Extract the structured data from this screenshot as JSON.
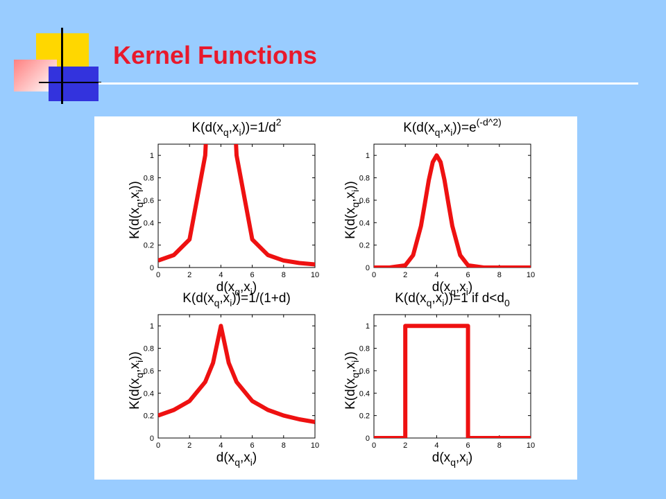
{
  "slide": {
    "title": "Kernel Functions",
    "accent_color": "#e8192c",
    "background_color": "#99ccff"
  },
  "chart_data": [
    {
      "type": "line",
      "title": "K(d(x_q,x_i))=1/d^2",
      "xlabel": "d(x_q,x_i)",
      "ylabel": "K(d(x_q,x_i))",
      "xlim": [
        0,
        10
      ],
      "ylim": [
        0,
        1.1
      ],
      "xticks": [
        0,
        2,
        4,
        6,
        8,
        10
      ],
      "yticks": [
        0,
        0.2,
        0.4,
        0.6,
        0.8,
        1
      ],
      "series_color": "#ee1111",
      "x": [
        0,
        1,
        2,
        3,
        3.2,
        4.8,
        5,
        6,
        7,
        8,
        9,
        10
      ],
      "y": [
        0.0625,
        0.111,
        0.25,
        1,
        1.56,
        1.56,
        1,
        0.25,
        0.111,
        0.0625,
        0.04,
        0.0278
      ]
    },
    {
      "type": "line",
      "title": "K(d(x_q,x_i))=e^(-d^2)",
      "xlabel": "d(x_q,x_i)",
      "ylabel": "K(d(x_q,x_i))",
      "xlim": [
        0,
        10
      ],
      "ylim": [
        0,
        1.1
      ],
      "xticks": [
        0,
        2,
        4,
        6,
        8,
        10
      ],
      "yticks": [
        0,
        0.2,
        0.4,
        0.6,
        0.8,
        1
      ],
      "series_color": "#ee1111",
      "x": [
        0,
        1,
        2,
        2.5,
        3,
        3.25,
        3.5,
        3.75,
        4,
        4.25,
        4.5,
        4.75,
        5,
        5.5,
        6,
        7,
        8,
        9,
        10
      ],
      "y": [
        0,
        0,
        0.02,
        0.11,
        0.37,
        0.57,
        0.78,
        0.94,
        1,
        0.94,
        0.78,
        0.57,
        0.37,
        0.11,
        0.02,
        0,
        0,
        0,
        0
      ]
    },
    {
      "type": "line",
      "title": "K(d(x_q,x_i))=1/(1+d)",
      "xlabel": "d(x_q,x_i)",
      "ylabel": "K(d(x_q,x_i))",
      "xlim": [
        0,
        10
      ],
      "ylim": [
        0,
        1.1
      ],
      "xticks": [
        0,
        2,
        4,
        6,
        8,
        10
      ],
      "yticks": [
        0,
        0.2,
        0.4,
        0.6,
        0.8,
        1
      ],
      "series_color": "#ee1111",
      "x": [
        0,
        1,
        2,
        3,
        3.5,
        4,
        4.5,
        5,
        6,
        7,
        8,
        9,
        10
      ],
      "y": [
        0.2,
        0.25,
        0.33,
        0.5,
        0.67,
        1,
        0.67,
        0.5,
        0.33,
        0.25,
        0.2,
        0.167,
        0.143
      ]
    },
    {
      "type": "line",
      "title": "K(d(x_q,x_i))=1 if d<d_0",
      "xlabel": "d(x_q,x_i)",
      "ylabel": "K(d(x_q,x_i))",
      "xlim": [
        0,
        10
      ],
      "ylim": [
        0,
        1.1
      ],
      "xticks": [
        0,
        2,
        4,
        6,
        8,
        10
      ],
      "yticks": [
        0,
        0.2,
        0.4,
        0.6,
        0.8,
        1
      ],
      "series_color": "#ee1111",
      "x": [
        0,
        2,
        2,
        6,
        6,
        10
      ],
      "y": [
        0,
        0,
        1,
        1,
        0,
        0
      ]
    }
  ]
}
